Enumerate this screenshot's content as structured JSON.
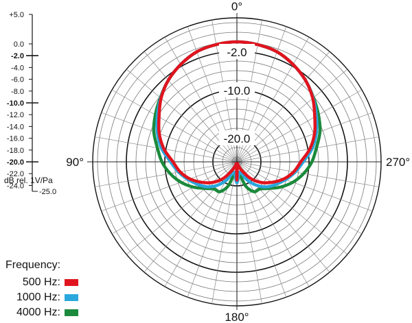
{
  "chart_data": {
    "type": "polar",
    "angle_labels": [
      "0°",
      "90°",
      "180°",
      "270°"
    ],
    "ring_labels": [
      "-2.0",
      "-10.0",
      "-20.0"
    ],
    "rlim": [
      -25,
      5
    ],
    "ring_step_db": 2,
    "scale": {
      "ticks": [
        "+5.0",
        "0.0",
        "-2.0",
        "-4.0",
        "-6.0",
        "-8.0",
        "-10.0",
        "-12.0",
        "-14.0",
        "-16.0",
        "-18.0",
        "-20.0",
        "-22.0",
        "-24.0",
        "-25.0"
      ],
      "tick_values": [
        5,
        0,
        -2,
        -4,
        -6,
        -8,
        -10,
        -12,
        -14,
        -16,
        -18,
        -20,
        -22,
        -24,
        -25
      ],
      "bold_ticks": [
        "-2.0",
        "-10.0",
        "-20.0"
      ],
      "unit": "dB rel. 1V/Pa"
    },
    "legend_title": "Frequency:",
    "series": [
      {
        "name": "500 Hz",
        "color": "#e0141e",
        "angles_deg": [
          0,
          10,
          20,
          30,
          40,
          50,
          60,
          70,
          80,
          90,
          100,
          110,
          120,
          130,
          140,
          150,
          160,
          170,
          180
        ],
        "values_db": [
          0.0,
          -0.2,
          -0.6,
          -1.6,
          -2.8,
          -4.4,
          -6.3,
          -7.8,
          -9.6,
          -11.7,
          -13.0,
          -14.6,
          -16.5,
          -18.3,
          -20.4,
          -22.8,
          -24.2,
          -24.4,
          -21.2
        ]
      },
      {
        "name": "1000 Hz",
        "color": "#2aa7dc",
        "angles_deg": [
          0,
          10,
          20,
          30,
          40,
          50,
          60,
          70,
          80,
          90,
          100,
          110,
          120,
          130,
          140,
          150,
          160,
          170,
          180
        ],
        "values_db": [
          0.0,
          -0.2,
          -0.6,
          -1.6,
          -2.8,
          -4.3,
          -5.9,
          -7.4,
          -9.1,
          -11.2,
          -12.7,
          -14.2,
          -15.6,
          -16.9,
          -18.6,
          -20.6,
          -22.6,
          -22.5,
          -20.6
        ]
      },
      {
        "name": "4000 Hz",
        "color": "#1b8a3c",
        "angles_deg": [
          0,
          10,
          20,
          30,
          40,
          50,
          60,
          70,
          80,
          90,
          100,
          110,
          120,
          130,
          140,
          150,
          160,
          170,
          180
        ],
        "values_db": [
          0.0,
          -0.2,
          -0.6,
          -1.6,
          -2.8,
          -4.2,
          -5.4,
          -6.6,
          -8.2,
          -9.4,
          -10.9,
          -12.6,
          -14.5,
          -16.4,
          -17.6,
          -17.8,
          -19.6,
          -22.6,
          -21.2
        ]
      }
    ]
  }
}
